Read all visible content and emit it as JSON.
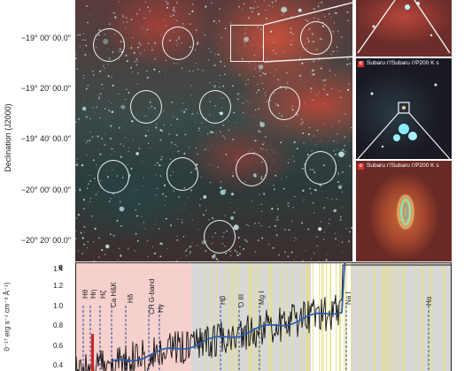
{
  "figure": {
    "declination_axis_title": "Declination (J2000)",
    "declination_ticks": [
      "−19° 00′ 00.0″",
      "−19° 20′ 00.0″",
      "−19° 40′ 00.0″",
      "−20° 00′ 00.0″",
      "−20° 20′ 00.0″"
    ],
    "insets": [
      {
        "letter": "",
        "label": ""
      },
      {
        "letter": "c",
        "label": "Subaru r′/Subaru i′/P200 K s"
      },
      {
        "letter": "c",
        "label": "Subaru r′/Subaru i′/P200 K s"
      }
    ],
    "spectrum_panel_letter": "e",
    "spectrum_ylabel": "0⁻¹⁷ erg s⁻¹ cm⁻² Å⁻¹)",
    "spectrum_yticks": [
      "1.4",
      "1.2",
      "1.0",
      "0.8",
      "0.6",
      "0.4"
    ],
    "spectral_lines": [
      "Hθ",
      "Hη",
      "Hζ",
      "Ca H&K",
      "Hδ",
      "CH G-band",
      "Hγ",
      "Hβ",
      "O III",
      "Mg I",
      "Na I",
      "Hα"
    ],
    "colors": {
      "continuum_fit": "#2a5db0",
      "spectrum": "#111111",
      "pink_band": "#f6d0cc",
      "grey_band": "#d8d8d8",
      "yellow_lines": "#e6e08a",
      "marker": "#cc2222"
    }
  }
}
